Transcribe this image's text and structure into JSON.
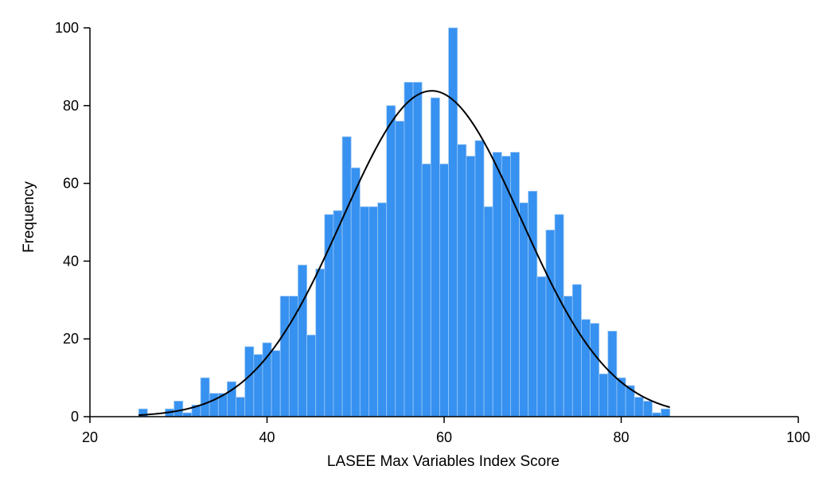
{
  "chart_data": {
    "type": "bar",
    "title": "",
    "xlabel": "LASEE Max Variables Index Score",
    "ylabel": "Frequency",
    "xlim": [
      20,
      100
    ],
    "ylim": [
      0,
      100
    ],
    "x_ticks": [
      20,
      40,
      60,
      80,
      100
    ],
    "y_ticks": [
      0,
      20,
      40,
      60,
      80,
      100
    ],
    "grid": false,
    "legend": "none",
    "bin_start": 25.5,
    "bin_width": 1,
    "values": [
      2,
      0,
      0,
      2,
      4,
      1,
      3,
      10,
      6,
      6,
      9,
      5,
      18,
      16,
      19,
      17,
      31,
      31,
      39,
      21,
      38,
      52,
      53,
      72,
      64,
      54,
      54,
      55,
      80,
      76,
      86,
      86,
      65,
      82,
      65,
      100,
      70,
      67,
      71,
      54,
      68,
      67,
      68,
      55,
      58,
      36,
      48,
      52,
      31,
      34,
      25,
      24,
      11,
      22,
      10,
      8,
      5,
      4,
      1,
      2
    ],
    "normal_curve": {
      "mean": 58.6,
      "sd": 10.1,
      "peak": 83.8,
      "x_range": [
        25.5,
        85.5
      ]
    },
    "colors": {
      "bars": "#3691F0",
      "bar_edge": "#9CC8F5",
      "curve": "#000000",
      "axis": "#000000"
    }
  }
}
